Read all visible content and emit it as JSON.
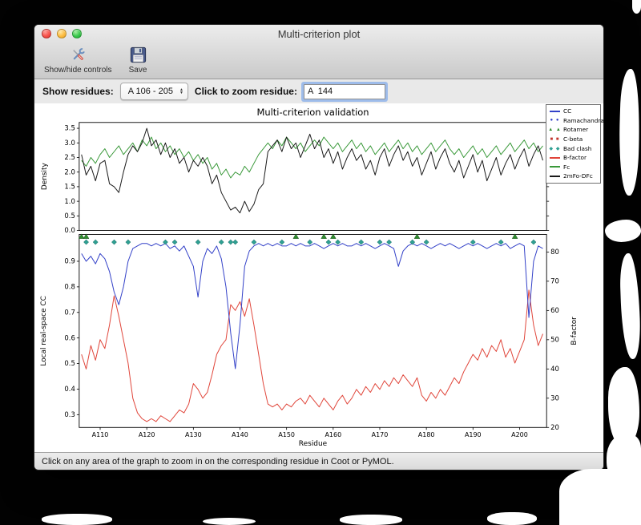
{
  "window": {
    "title": "Multi-criterion plot",
    "toolbar": {
      "show_hide_controls": "Show/hide controls",
      "save": "Save"
    },
    "controls": {
      "show_residues_label": "Show residues:",
      "residue_range": "A 106 - 205",
      "zoom_label": "Click to zoom residue:",
      "zoom_value": "A  144"
    },
    "status_text": "Click on any area of the graph to zoom in on the corresponding residue in Coot or PyMOL."
  },
  "chart_data": {
    "type": "line",
    "title": "Multi-criterion validation",
    "xlabel": "Residue",
    "x_start": 106,
    "x_end": 205,
    "x_ticks": [
      "A110",
      "A120",
      "A130",
      "A140",
      "A150",
      "A160",
      "A170",
      "A180",
      "A190",
      "A200"
    ],
    "colors": {
      "cc": "#3341c8",
      "bfactor": "#e0453a",
      "fc": "#3a993a",
      "two_mfo_dfc": "#1a1a1a",
      "rotamer": "#2e8b2e",
      "bad_clash": "#2fa093",
      "ramachandran": "#3341c8",
      "c_beta": "#c2352c"
    },
    "top_plot": {
      "ylabel": "Density",
      "ylim": [
        0,
        3.7
      ],
      "yticks": [
        0.0,
        0.5,
        1.0,
        1.5,
        2.0,
        2.5,
        3.0,
        3.5
      ],
      "series": [
        {
          "name": "Fc",
          "color_key": "fc",
          "values": [
            2.4,
            2.2,
            2.5,
            2.3,
            2.6,
            2.8,
            2.5,
            2.7,
            2.9,
            2.6,
            2.8,
            3.0,
            2.7,
            3.1,
            2.9,
            3.2,
            2.8,
            3.0,
            2.7,
            2.9,
            2.6,
            2.8,
            2.5,
            2.7,
            2.4,
            2.6,
            2.3,
            2.5,
            2.1,
            2.3,
            1.9,
            2.1,
            1.8,
            2.0,
            1.9,
            2.2,
            2.0,
            2.3,
            2.6,
            2.8,
            3.0,
            2.8,
            3.1,
            2.9,
            3.2,
            3.0,
            2.8,
            3.0,
            2.7,
            2.9,
            3.1,
            2.9,
            3.2,
            3.0,
            2.8,
            3.0,
            2.7,
            2.9,
            3.1,
            2.8,
            3.0,
            2.7,
            2.9,
            2.6,
            2.8,
            3.0,
            2.7,
            2.9,
            3.1,
            2.8,
            3.0,
            2.7,
            2.9,
            2.6,
            2.8,
            3.0,
            2.7,
            2.9,
            3.1,
            2.8,
            2.6,
            2.8,
            2.5,
            2.7,
            2.9,
            2.6,
            2.8,
            2.5,
            2.7,
            2.9,
            2.6,
            2.8,
            3.0,
            2.7,
            2.9,
            3.1,
            2.8,
            3.0,
            2.7,
            2.9
          ]
        },
        {
          "name": "2mFo-DFc",
          "color_key": "two_mfo_dfc",
          "values": [
            2.6,
            1.9,
            2.2,
            1.7,
            2.3,
            2.4,
            1.6,
            1.5,
            1.3,
            2.0,
            2.6,
            2.9,
            2.7,
            3.0,
            3.5,
            2.9,
            3.1,
            2.6,
            3.0,
            2.5,
            2.8,
            2.3,
            2.5,
            2.0,
            2.4,
            2.2,
            2.5,
            2.2,
            1.6,
            1.9,
            1.3,
            1.0,
            0.7,
            0.8,
            0.6,
            1.0,
            0.65,
            0.9,
            1.4,
            1.6,
            2.7,
            2.9,
            3.1,
            2.7,
            3.2,
            2.8,
            3.0,
            2.5,
            2.9,
            3.3,
            2.8,
            3.1,
            2.5,
            2.8,
            2.3,
            2.7,
            2.1,
            2.5,
            2.8,
            2.4,
            2.6,
            2.1,
            2.4,
            1.9,
            2.5,
            2.8,
            2.2,
            2.6,
            2.9,
            2.4,
            2.7,
            2.2,
            2.5,
            1.9,
            2.3,
            2.7,
            2.1,
            2.5,
            2.8,
            2.3,
            2.0,
            2.4,
            1.8,
            2.2,
            2.6,
            2.0,
            2.4,
            1.7,
            2.1,
            2.5,
            1.9,
            2.3,
            2.6,
            2.1,
            2.5,
            2.8,
            2.2,
            2.6,
            2.9,
            2.4
          ]
        }
      ]
    },
    "bottom_plot": {
      "left_ylabel": "Local real-space CC",
      "left_ylim": [
        0.25,
        1.005
      ],
      "left_yticks": [
        0.3,
        0.4,
        0.5,
        0.6,
        0.7,
        0.8,
        0.9
      ],
      "right_ylabel": "B-factor",
      "right_ylim": [
        20,
        86
      ],
      "right_yticks": [
        20,
        30,
        40,
        50,
        60,
        70,
        80
      ],
      "cc": {
        "name": "CC",
        "color_key": "cc",
        "values": [
          0.93,
          0.9,
          0.92,
          0.89,
          0.93,
          0.91,
          0.86,
          0.78,
          0.73,
          0.8,
          0.9,
          0.95,
          0.96,
          0.97,
          0.97,
          0.96,
          0.97,
          0.96,
          0.97,
          0.95,
          0.96,
          0.94,
          0.96,
          0.92,
          0.88,
          0.76,
          0.9,
          0.95,
          0.93,
          0.96,
          0.91,
          0.8,
          0.62,
          0.48,
          0.65,
          0.88,
          0.94,
          0.96,
          0.97,
          0.96,
          0.97,
          0.96,
          0.97,
          0.96,
          0.96,
          0.97,
          0.96,
          0.97,
          0.96,
          0.96,
          0.97,
          0.96,
          0.95,
          0.96,
          0.97,
          0.96,
          0.97,
          0.96,
          0.96,
          0.97,
          0.96,
          0.97,
          0.96,
          0.95,
          0.96,
          0.97,
          0.96,
          0.95,
          0.88,
          0.94,
          0.96,
          0.97,
          0.96,
          0.97,
          0.96,
          0.95,
          0.96,
          0.97,
          0.96,
          0.97,
          0.96,
          0.95,
          0.96,
          0.97,
          0.96,
          0.97,
          0.96,
          0.95,
          0.96,
          0.97,
          0.96,
          0.97,
          0.95,
          0.96,
          0.97,
          0.96,
          0.68,
          0.9,
          0.96,
          0.95
        ]
      },
      "bfactor": {
        "name": "B-factor",
        "color_key": "bfactor",
        "values": [
          45,
          40,
          48,
          43,
          50,
          47,
          55,
          65,
          58,
          50,
          42,
          30,
          25,
          23,
          22,
          23,
          22,
          24,
          23,
          22,
          24,
          26,
          25,
          28,
          35,
          33,
          30,
          32,
          38,
          45,
          48,
          50,
          62,
          60,
          63,
          58,
          64,
          55,
          45,
          35,
          28,
          27,
          28,
          26,
          28,
          27,
          29,
          30,
          28,
          31,
          29,
          27,
          30,
          28,
          26,
          29,
          31,
          28,
          30,
          33,
          31,
          34,
          32,
          35,
          33,
          36,
          34,
          37,
          35,
          38,
          36,
          34,
          37,
          31,
          29,
          32,
          30,
          33,
          31,
          34,
          37,
          35,
          39,
          42,
          45,
          43,
          47,
          44,
          48,
          46,
          50,
          44,
          47,
          42,
          46,
          50,
          67,
          55,
          48,
          52
        ]
      },
      "markers": {
        "bad_clash": {
          "y": 0.975,
          "residues": [
            107,
            109,
            113,
            116,
            124,
            126,
            131,
            136,
            138,
            139,
            143,
            149,
            155,
            159,
            161,
            166,
            170,
            172,
            177,
            180,
            190,
            196,
            203
          ]
        },
        "rotamer": {
          "y": 0.997,
          "residues": [
            106,
            107,
            152,
            158,
            160,
            178,
            199
          ]
        }
      }
    },
    "legend": [
      {
        "label": "CC",
        "marker": "line",
        "color_key": "cc"
      },
      {
        "label": "Ramachandran",
        "marker": "glyph",
        "glyph": "● ●",
        "color_key": "ramachandran"
      },
      {
        "label": "Rotamer",
        "marker": "glyph",
        "glyph": "▲ ▲",
        "color_key": "rotamer"
      },
      {
        "label": "C-beta",
        "marker": "glyph",
        "glyph": "■ ■",
        "color_key": "c_beta"
      },
      {
        "label": "Bad clash",
        "marker": "glyph",
        "glyph": "◆ ◆",
        "color_key": "bad_clash"
      },
      {
        "label": "B-factor",
        "marker": "line",
        "color_key": "bfactor"
      },
      {
        "label": "Fc",
        "marker": "line",
        "color_key": "fc"
      },
      {
        "label": "2mFo-DFc",
        "marker": "line",
        "color_key": "two_mfo_dfc"
      }
    ]
  }
}
